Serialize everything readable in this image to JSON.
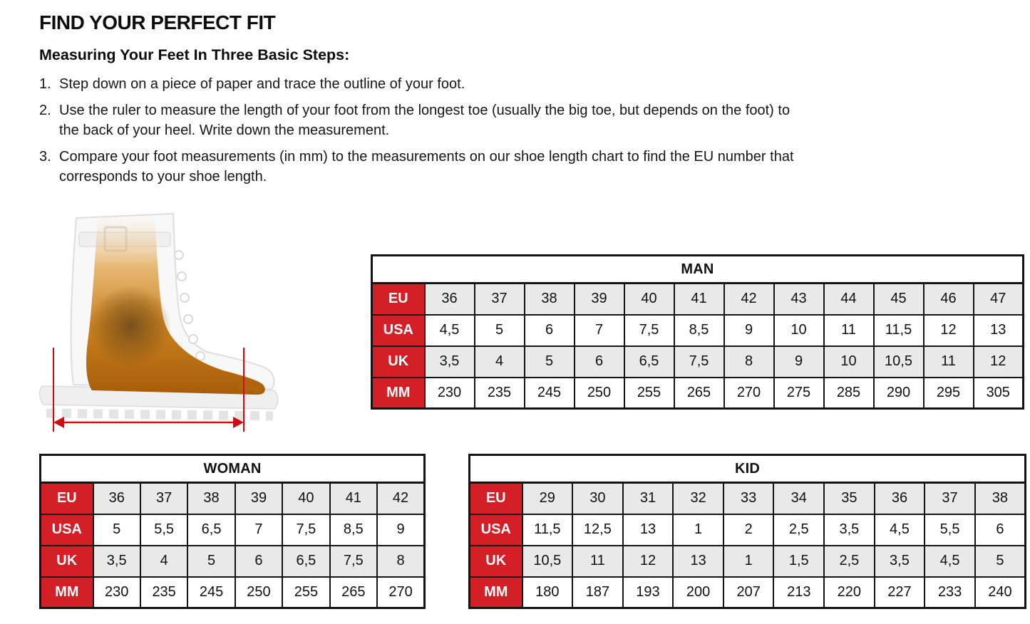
{
  "page": {
    "title": "FIND YOUR PERFECT FIT",
    "subtitle": "Measuring Your Feet In Three Basic Steps:",
    "steps": [
      {
        "number": "1.",
        "lines": [
          "Step down on a piece of paper and trace the outline of your foot."
        ]
      },
      {
        "number": "2.",
        "lines": [
          "Use the ruler to measure the length of your foot from the longest toe (usually the big toe, but depends on the foot) to",
          "the back of your heel. Write down the measurement."
        ]
      },
      {
        "number": "3.",
        "lines": [
          "Compare your foot measurements (in mm) to the measurements on our shoe length chart to find the EU number that",
          "corresponds to your shoe length."
        ]
      }
    ]
  },
  "illustration": {
    "name": "xray-boot-with-foot-length-measurement",
    "arrow_meaning": "foot length in mm"
  },
  "colors": {
    "label_red": "#d41f26",
    "row_gray": "#e9e9e9",
    "border_black": "#141414",
    "arrow_red": "#d10a10"
  },
  "tables": {
    "man": {
      "title": "MAN",
      "rows": [
        {
          "label": "EU",
          "shaded": true,
          "values": [
            "36",
            "37",
            "38",
            "39",
            "40",
            "41",
            "42",
            "43",
            "44",
            "45",
            "46",
            "47"
          ]
        },
        {
          "label": "USA",
          "shaded": false,
          "values": [
            "4,5",
            "5",
            "6",
            "7",
            "7,5",
            "8,5",
            "9",
            "10",
            "11",
            "11,5",
            "12",
            "13"
          ]
        },
        {
          "label": "UK",
          "shaded": true,
          "values": [
            "3,5",
            "4",
            "5",
            "6",
            "6,5",
            "7,5",
            "8",
            "9",
            "10",
            "10,5",
            "11",
            "12"
          ]
        },
        {
          "label": "MM",
          "shaded": false,
          "values": [
            "230",
            "235",
            "245",
            "250",
            "255",
            "265",
            "270",
            "275",
            "285",
            "290",
            "295",
            "305"
          ]
        }
      ]
    },
    "woman": {
      "title": "WOMAN",
      "rows": [
        {
          "label": "EU",
          "shaded": true,
          "values": [
            "36",
            "37",
            "38",
            "39",
            "40",
            "41",
            "42"
          ]
        },
        {
          "label": "USA",
          "shaded": false,
          "values": [
            "5",
            "5,5",
            "6,5",
            "7",
            "7,5",
            "8,5",
            "9"
          ]
        },
        {
          "label": "UK",
          "shaded": true,
          "values": [
            "3,5",
            "4",
            "5",
            "6",
            "6,5",
            "7,5",
            "8"
          ]
        },
        {
          "label": "MM",
          "shaded": false,
          "values": [
            "230",
            "235",
            "245",
            "250",
            "255",
            "265",
            "270"
          ]
        }
      ]
    },
    "kid": {
      "title": "KID",
      "rows": [
        {
          "label": "EU",
          "shaded": true,
          "values": [
            "29",
            "30",
            "31",
            "32",
            "33",
            "34",
            "35",
            "36",
            "37",
            "38"
          ]
        },
        {
          "label": "USA",
          "shaded": false,
          "values": [
            "11,5",
            "12,5",
            "13",
            "1",
            "2",
            "2,5",
            "3,5",
            "4,5",
            "5,5",
            "6"
          ]
        },
        {
          "label": "UK",
          "shaded": true,
          "values": [
            "10,5",
            "11",
            "12",
            "13",
            "1",
            "1,5",
            "2,5",
            "3,5",
            "4,5",
            "5"
          ]
        },
        {
          "label": "MM",
          "shaded": false,
          "values": [
            "180",
            "187",
            "193",
            "200",
            "207",
            "213",
            "220",
            "227",
            "233",
            "240"
          ]
        }
      ]
    }
  }
}
